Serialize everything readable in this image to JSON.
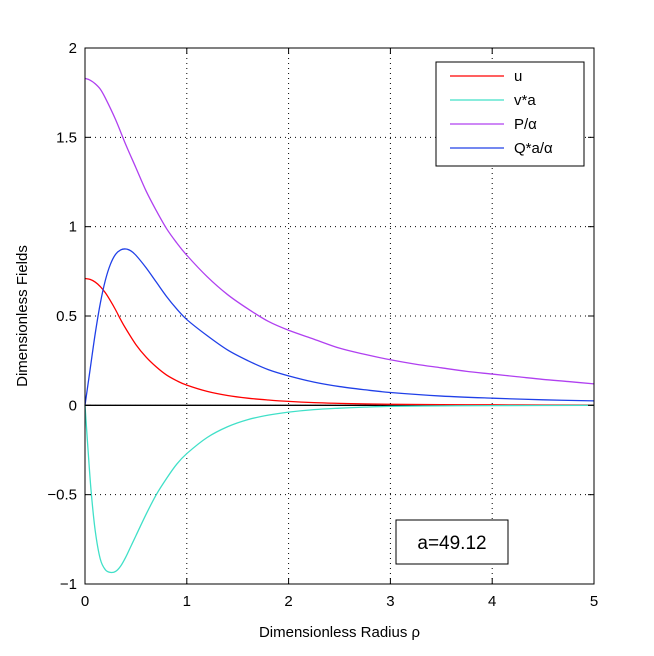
{
  "chart_data": {
    "type": "line",
    "title": "",
    "xlabel": "Dimensionless Radius ρ",
    "ylabel": "Dimensionless Fields",
    "xlim": [
      0,
      5
    ],
    "ylim": [
      -1,
      2
    ],
    "xticks": [
      0,
      1,
      2,
      3,
      4,
      5
    ],
    "yticks": [
      -1,
      -0.5,
      0,
      0.5,
      1,
      1.5,
      2
    ],
    "xtick_labels": [
      "0",
      "1",
      "2",
      "3",
      "4",
      "5"
    ],
    "ytick_labels": [
      "−1",
      "−0.5",
      "0",
      "0.5",
      "1",
      "1.5",
      "2"
    ],
    "grid": true,
    "legend_position": "top-right",
    "annotation": "a=49.12",
    "series": [
      {
        "name": "u",
        "color": "#ff0000",
        "x": [
          0,
          0.05,
          0.1,
          0.15,
          0.2,
          0.25,
          0.3,
          0.35,
          0.4,
          0.5,
          0.6,
          0.7,
          0.8,
          0.9,
          1.0,
          1.2,
          1.4,
          1.6,
          1.8,
          2.0,
          2.25,
          2.5,
          2.75,
          3.0,
          3.5,
          4.0,
          4.5,
          5.0
        ],
        "y": [
          0.71,
          0.705,
          0.69,
          0.665,
          0.63,
          0.585,
          0.535,
          0.48,
          0.43,
          0.34,
          0.27,
          0.215,
          0.17,
          0.138,
          0.113,
          0.078,
          0.055,
          0.04,
          0.03,
          0.022,
          0.015,
          0.011,
          0.008,
          0.006,
          0.004,
          0.003,
          0.002,
          0.0015
        ]
      },
      {
        "name": "v*a",
        "color": "#40e0c8",
        "x": [
          0,
          0.03,
          0.06,
          0.1,
          0.15,
          0.2,
          0.25,
          0.3,
          0.35,
          0.4,
          0.45,
          0.5,
          0.6,
          0.7,
          0.8,
          0.9,
          1.0,
          1.2,
          1.4,
          1.6,
          1.8,
          2.0,
          2.25,
          2.5,
          2.75,
          3.0,
          3.5,
          4.0,
          5.0
        ],
        "y": [
          0,
          -0.25,
          -0.48,
          -0.7,
          -0.86,
          -0.92,
          -0.935,
          -0.93,
          -0.9,
          -0.85,
          -0.79,
          -0.73,
          -0.61,
          -0.5,
          -0.41,
          -0.33,
          -0.27,
          -0.18,
          -0.12,
          -0.08,
          -0.055,
          -0.038,
          -0.024,
          -0.016,
          -0.01,
          -0.006,
          -0.003,
          -0.0015,
          0
        ]
      },
      {
        "name": "P/α",
        "color": "#b040f0",
        "x": [
          0,
          0.05,
          0.1,
          0.15,
          0.2,
          0.3,
          0.4,
          0.5,
          0.6,
          0.7,
          0.8,
          0.9,
          1.0,
          1.2,
          1.4,
          1.6,
          1.8,
          2.0,
          2.25,
          2.5,
          2.75,
          3.0,
          3.25,
          3.5,
          3.75,
          4.0,
          4.25,
          4.5,
          4.75,
          5.0
        ],
        "y": [
          1.83,
          1.82,
          1.8,
          1.77,
          1.72,
          1.6,
          1.46,
          1.33,
          1.2,
          1.09,
          0.99,
          0.91,
          0.84,
          0.72,
          0.62,
          0.54,
          0.47,
          0.42,
          0.37,
          0.32,
          0.285,
          0.255,
          0.23,
          0.21,
          0.19,
          0.175,
          0.16,
          0.145,
          0.133,
          0.12
        ]
      },
      {
        "name": "Q*a/α",
        "color": "#2040e8",
        "x": [
          0,
          0.05,
          0.1,
          0.15,
          0.2,
          0.25,
          0.3,
          0.35,
          0.4,
          0.45,
          0.5,
          0.6,
          0.7,
          0.8,
          0.9,
          1.0,
          1.2,
          1.4,
          1.6,
          1.8,
          2.0,
          2.25,
          2.5,
          2.75,
          3.0,
          3.5,
          4.0,
          4.5,
          5.0
        ],
        "y": [
          0,
          0.2,
          0.4,
          0.57,
          0.7,
          0.79,
          0.845,
          0.87,
          0.875,
          0.865,
          0.84,
          0.77,
          0.69,
          0.61,
          0.54,
          0.48,
          0.39,
          0.31,
          0.25,
          0.2,
          0.165,
          0.13,
          0.105,
          0.087,
          0.072,
          0.052,
          0.04,
          0.031,
          0.025
        ]
      }
    ]
  }
}
